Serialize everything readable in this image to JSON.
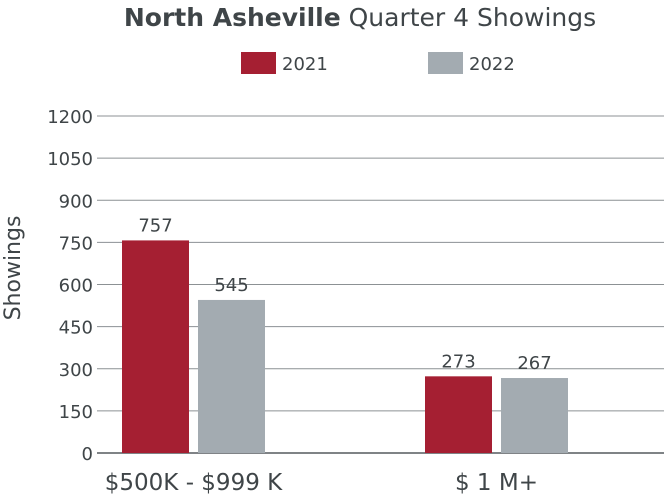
{
  "chart_data": {
    "type": "bar",
    "title_bold": "North Asheville",
    "title_rest": " Quarter 4 Showings",
    "xlabel": "",
    "ylabel": "Showings",
    "ylim": [
      0,
      1200
    ],
    "yticks": [
      0,
      150,
      300,
      450,
      600,
      750,
      900,
      1050,
      1200
    ],
    "categories": [
      "$500K - $999 K",
      "$ 1 M+"
    ],
    "series": [
      {
        "name": "2021",
        "color": "#a51f32",
        "values": [
          757,
          273
        ]
      },
      {
        "name": "2022",
        "color": "#a3abb1",
        "values": [
          545,
          267
        ]
      }
    ],
    "grid": true,
    "legend": "top-center",
    "data_labels": true
  }
}
